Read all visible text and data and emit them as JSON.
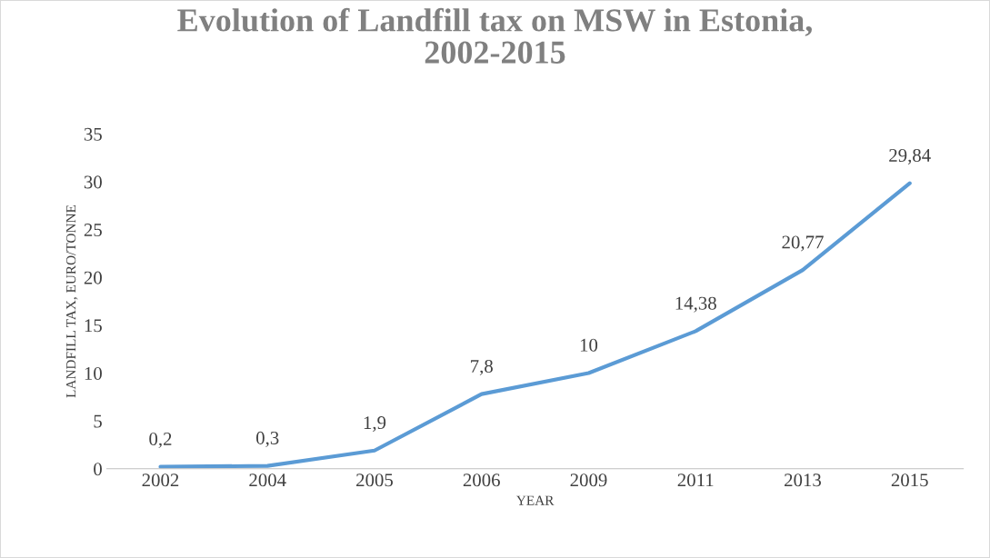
{
  "chart_data": {
    "type": "line",
    "title": "Evolution of Landfill tax on MSW in Estonia,\n2002-2015",
    "xlabel": "YEAR",
    "ylabel": "LANDFILL TAX, EURO/TONNE",
    "categories": [
      "2002",
      "2004",
      "2005",
      "2006",
      "2009",
      "2011",
      "2013",
      "2015"
    ],
    "series": [
      {
        "color": "#5b9bd5",
        "values": [
          0.2,
          0.3,
          1.9,
          7.8,
          10,
          14.38,
          20.77,
          29.84
        ],
        "value_labels": [
          "0,2",
          "0,3",
          "1,9",
          "7,8",
          "10",
          "14,38",
          "20,77",
          "29,84"
        ]
      }
    ],
    "ylim": [
      0,
      35
    ],
    "yticks": [
      0,
      5,
      10,
      15,
      20,
      25,
      30,
      35
    ],
    "grid": false,
    "legend": false,
    "marker": "none",
    "line_style": "solid"
  }
}
